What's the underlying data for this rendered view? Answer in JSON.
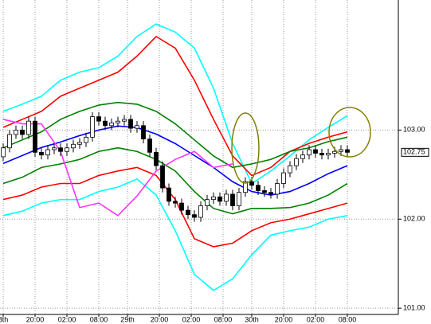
{
  "chart_data": {
    "type": "candlestick",
    "xlim": [
      -0.5,
      62
    ],
    "ylim": [
      100.93,
      104.46
    ],
    "xticks": [
      {
        "value": 0,
        "label": "8th"
      },
      {
        "value": 5,
        "label": "20:00"
      },
      {
        "value": 10,
        "label": "02:00"
      },
      {
        "value": 15,
        "label": "08:00"
      },
      {
        "value": 19.5,
        "label": "29th"
      },
      {
        "value": 24.5,
        "label": "20:00"
      },
      {
        "value": 29.5,
        "label": "02:00"
      },
      {
        "value": 34.5,
        "label": "08:00"
      },
      {
        "value": 39,
        "label": "30th"
      },
      {
        "value": 44,
        "label": "20:00"
      },
      {
        "value": 49,
        "label": "02:00"
      },
      {
        "value": 54,
        "label": "08:00"
      }
    ],
    "yticks": [
      {
        "value": 101,
        "label": "101.00"
      },
      {
        "value": 102,
        "label": "102.00"
      },
      {
        "value": 103,
        "label": "103.00"
      }
    ],
    "last_price": {
      "value": 102.75,
      "label": "102.75"
    },
    "grid": true,
    "up_color": "#ffffff",
    "down_color": "#000000",
    "candles": {
      "x": [
        0,
        1,
        2,
        3,
        4,
        5,
        6,
        7,
        8,
        9,
        10,
        11,
        12,
        13,
        14,
        15,
        16,
        17,
        18,
        19,
        20,
        21,
        22,
        23,
        24,
        25,
        26,
        27,
        28,
        29,
        30,
        31,
        32,
        33,
        34,
        35,
        36,
        37,
        38,
        39,
        40,
        41,
        42,
        43,
        44,
        45,
        46,
        47,
        48,
        49,
        50,
        51,
        52,
        53,
        54
      ],
      "open": [
        102.7,
        102.8,
        102.95,
        103.0,
        102.95,
        103.1,
        102.75,
        102.72,
        102.78,
        102.8,
        102.76,
        102.8,
        102.84,
        102.86,
        102.92,
        103.15,
        103.1,
        103.05,
        103.08,
        103.1,
        103.12,
        103.02,
        103.05,
        102.9,
        102.75,
        102.6,
        102.35,
        102.2,
        102.18,
        102.1,
        102.05,
        102.02,
        102.15,
        102.22,
        102.25,
        102.2,
        102.28,
        102.15,
        102.3,
        102.42,
        102.38,
        102.32,
        102.3,
        102.28,
        102.4,
        102.52,
        102.6,
        102.68,
        102.72,
        102.78,
        102.74,
        102.72,
        102.74,
        102.76,
        102.78
      ],
      "high": [
        102.85,
        103.0,
        103.05,
        103.05,
        103.15,
        103.15,
        102.8,
        102.83,
        102.85,
        102.85,
        102.85,
        102.89,
        102.91,
        102.97,
        103.2,
        103.2,
        103.15,
        103.13,
        103.15,
        103.17,
        103.17,
        103.1,
        103.1,
        102.95,
        102.8,
        102.65,
        102.4,
        102.25,
        102.23,
        102.15,
        102.1,
        102.2,
        102.27,
        102.3,
        102.3,
        102.33,
        102.33,
        102.35,
        102.47,
        102.47,
        102.43,
        102.37,
        102.35,
        102.45,
        102.57,
        102.65,
        102.73,
        102.77,
        102.83,
        102.83,
        102.79,
        102.79,
        102.81,
        102.83,
        102.83
      ],
      "low": [
        102.65,
        102.75,
        102.9,
        102.9,
        102.9,
        102.7,
        102.67,
        102.67,
        102.73,
        102.71,
        102.71,
        102.75,
        102.79,
        102.81,
        102.87,
        103.05,
        103.0,
        103.0,
        103.03,
        103.05,
        102.97,
        102.97,
        102.85,
        102.7,
        102.55,
        102.3,
        102.15,
        102.13,
        102.05,
        102.0,
        101.97,
        101.97,
        102.1,
        102.17,
        102.15,
        102.15,
        102.1,
        102.1,
        102.25,
        102.33,
        102.27,
        102.25,
        102.23,
        102.23,
        102.35,
        102.47,
        102.55,
        102.63,
        102.67,
        102.69,
        102.67,
        102.67,
        102.69,
        102.71,
        102.7
      ],
      "close": [
        102.8,
        102.95,
        103.0,
        102.95,
        103.1,
        102.75,
        102.72,
        102.78,
        102.8,
        102.76,
        102.8,
        102.84,
        102.86,
        102.92,
        103.15,
        103.1,
        103.05,
        103.08,
        103.1,
        103.12,
        103.02,
        103.05,
        102.9,
        102.75,
        102.6,
        102.35,
        102.2,
        102.18,
        102.1,
        102.05,
        102.02,
        102.15,
        102.22,
        102.25,
        102.2,
        102.28,
        102.15,
        102.3,
        102.42,
        102.38,
        102.32,
        102.3,
        102.28,
        102.4,
        102.52,
        102.6,
        102.68,
        102.72,
        102.78,
        102.74,
        102.72,
        102.74,
        102.76,
        102.78,
        102.75
      ]
    },
    "lines": [
      {
        "color": "#00ffff",
        "x": [
          0,
          3,
          6,
          9,
          12,
          15,
          18,
          21,
          24,
          27,
          30,
          33,
          36,
          39,
          42,
          45,
          48,
          51,
          54
        ],
        "values": [
          103.21,
          103.29,
          103.38,
          103.56,
          103.65,
          103.7,
          103.83,
          104.05,
          104.19,
          104.1,
          103.92,
          103.47,
          102.85,
          102.4,
          102.54,
          102.71,
          102.89,
          103.03,
          103.16
        ]
      },
      {
        "color": "#ff0000",
        "x": [
          0,
          3,
          6,
          9,
          12,
          15,
          18,
          21,
          24,
          27,
          30,
          33,
          36,
          39,
          42,
          45,
          48,
          51,
          54
        ],
        "values": [
          103.03,
          103.12,
          103.21,
          103.38,
          103.47,
          103.56,
          103.65,
          103.83,
          104.05,
          103.92,
          103.56,
          103.12,
          102.71,
          102.49,
          102.58,
          102.76,
          102.85,
          102.92,
          102.98
        ]
      },
      {
        "color": "#008000",
        "x": [
          0,
          3,
          6,
          9,
          12,
          15,
          18,
          21,
          24,
          27,
          30,
          33,
          36,
          39,
          42,
          45,
          48,
          51,
          54
        ],
        "values": [
          102.8,
          102.89,
          102.98,
          103.12,
          103.21,
          103.28,
          103.31,
          103.29,
          103.21,
          103.07,
          102.89,
          102.71,
          102.58,
          102.62,
          102.67,
          102.76,
          102.8,
          102.87,
          102.92
        ]
      },
      {
        "color": "#0000ff",
        "x": [
          0,
          3,
          6,
          9,
          12,
          15,
          18,
          21,
          24,
          27,
          30,
          33,
          36,
          39,
          42,
          45,
          48,
          51,
          54
        ],
        "values": [
          102.625,
          102.714,
          102.804,
          102.866,
          102.938,
          103.0,
          103.045,
          103.027,
          102.955,
          102.848,
          102.714,
          102.58,
          102.42,
          102.31,
          102.27,
          102.31,
          102.4,
          102.51,
          102.6
        ]
      },
      {
        "color": "#008000",
        "x": [
          0,
          3,
          6,
          9,
          12,
          15,
          18,
          21,
          24,
          27,
          30,
          33,
          36,
          39,
          42,
          45,
          48,
          51,
          54
        ],
        "values": [
          102.4,
          102.47,
          102.58,
          102.62,
          102.67,
          102.76,
          102.8,
          102.76,
          102.67,
          102.54,
          102.31,
          102.12,
          102.06,
          102.12,
          102.12,
          102.13,
          102.18,
          102.27,
          102.4
        ]
      },
      {
        "color": "#ff0000",
        "x": [
          0,
          3,
          6,
          9,
          12,
          15,
          18,
          21,
          24,
          27,
          30,
          33,
          36,
          39,
          42,
          45,
          48,
          51,
          54
        ],
        "values": [
          102.22,
          102.27,
          102.36,
          102.4,
          102.4,
          102.49,
          102.54,
          102.58,
          102.49,
          102.22,
          101.78,
          101.69,
          101.73,
          101.87,
          101.96,
          102.0,
          102.06,
          102.12,
          102.18
        ]
      },
      {
        "color": "#00ffff",
        "x": [
          0,
          3,
          6,
          9,
          12,
          15,
          18,
          21,
          24,
          27,
          30,
          33,
          36,
          39,
          42,
          45,
          48,
          51,
          54
        ],
        "values": [
          102.04,
          102.09,
          102.18,
          102.22,
          102.22,
          102.31,
          102.36,
          102.45,
          102.27,
          101.87,
          101.38,
          101.2,
          101.33,
          101.6,
          101.82,
          101.87,
          101.91,
          102.0,
          102.04
        ]
      },
      {
        "color": "#ff33ff",
        "x": [
          0,
          3,
          6,
          9,
          12,
          15,
          18,
          21,
          24,
          27,
          30,
          33,
          36
        ],
        "values": [
          103.12,
          103.07,
          103.07,
          102.76,
          102.13,
          102.18,
          102.04,
          102.26,
          102.54,
          102.67,
          102.76,
          102.58,
          102.62
        ]
      }
    ]
  }
}
